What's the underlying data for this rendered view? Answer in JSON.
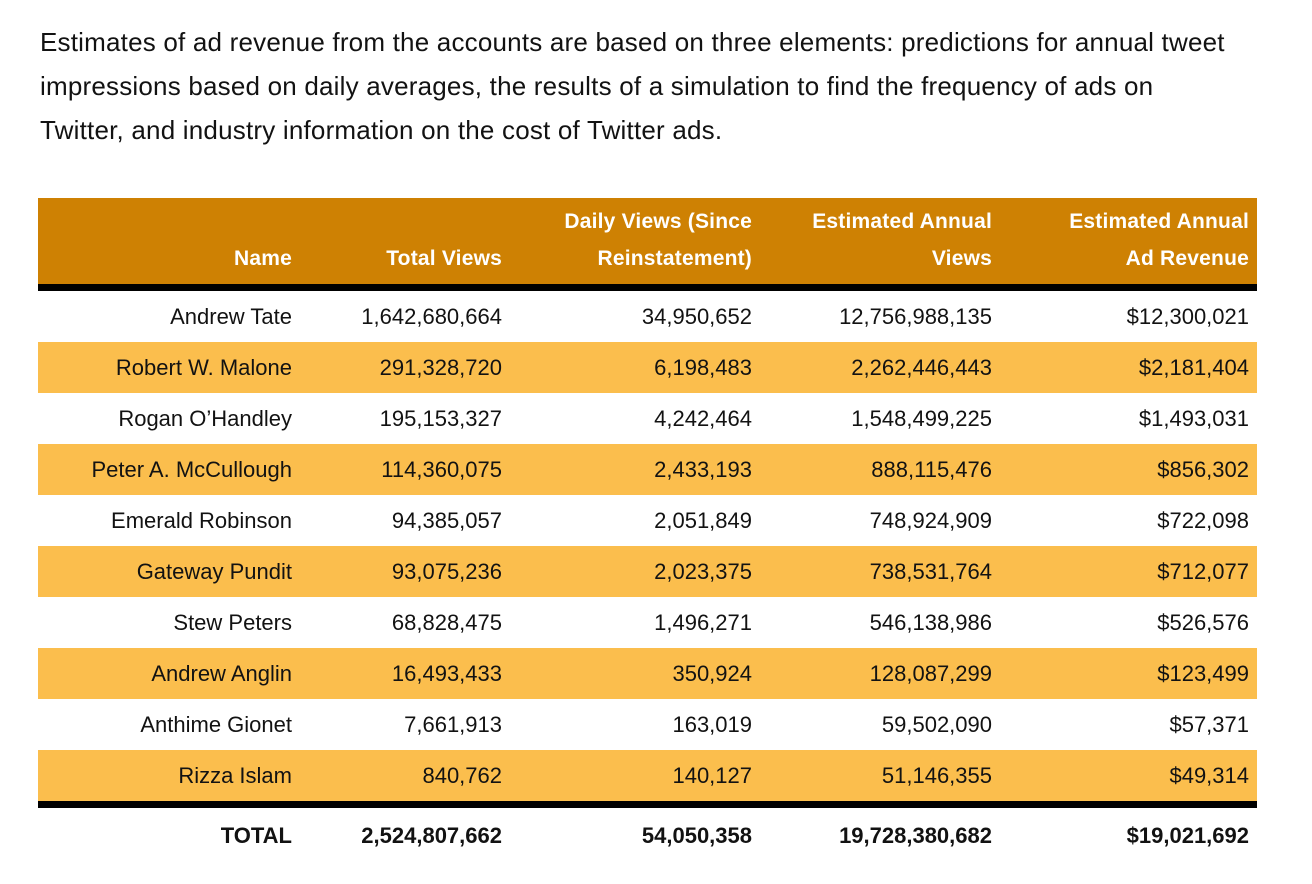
{
  "intro": {
    "text": "Estimates of ad revenue from the accounts are based on three elements: predictions for annual tweet impressions based on daily averages, the results of a simulation to find the frequency of ads on Twitter, and industry information on the cost of Twitter ads."
  },
  "colors": {
    "page_bg": "#FFFFFF",
    "header_bg": "#CE8103",
    "header_text": "#FFFFFF",
    "row_alt_bg": "#FBBE4D",
    "body_text": "#121212",
    "rule": "#000000"
  },
  "table": {
    "columns": [
      {
        "lines": [
          "Name"
        ]
      },
      {
        "lines": [
          "Total Views"
        ]
      },
      {
        "lines": [
          "Daily Views (Since",
          "Reinstatement)"
        ]
      },
      {
        "lines": [
          "Estimated Annual",
          "Views"
        ]
      },
      {
        "lines": [
          "Estimated Annual",
          "Ad Revenue"
        ]
      }
    ],
    "rows": [
      {
        "name": "Andrew Tate",
        "total_views": "1,642,680,664",
        "daily_views": "34,950,652",
        "annual_views": "12,756,988,135",
        "ad_revenue": "$12,300,021"
      },
      {
        "name": "Robert W. Malone",
        "total_views": "291,328,720",
        "daily_views": "6,198,483",
        "annual_views": "2,262,446,443",
        "ad_revenue": "$2,181,404"
      },
      {
        "name": "Rogan O’Handley",
        "total_views": "195,153,327",
        "daily_views": "4,242,464",
        "annual_views": "1,548,499,225",
        "ad_revenue": "$1,493,031"
      },
      {
        "name": "Peter A. McCullough",
        "total_views": "114,360,075",
        "daily_views": "2,433,193",
        "annual_views": "888,115,476",
        "ad_revenue": "$856,302"
      },
      {
        "name": "Emerald Robinson",
        "total_views": "94,385,057",
        "daily_views": "2,051,849",
        "annual_views": "748,924,909",
        "ad_revenue": "$722,098"
      },
      {
        "name": "Gateway Pundit",
        "total_views": "93,075,236",
        "daily_views": "2,023,375",
        "annual_views": "738,531,764",
        "ad_revenue": "$712,077"
      },
      {
        "name": "Stew Peters",
        "total_views": "68,828,475",
        "daily_views": "1,496,271",
        "annual_views": "546,138,986",
        "ad_revenue": "$526,576"
      },
      {
        "name": "Andrew Anglin",
        "total_views": "16,493,433",
        "daily_views": "350,924",
        "annual_views": "128,087,299",
        "ad_revenue": "$123,499"
      },
      {
        "name": "Anthime Gionet",
        "total_views": "7,661,913",
        "daily_views": "163,019",
        "annual_views": "59,502,090",
        "ad_revenue": "$57,371"
      },
      {
        "name": "Rizza Islam",
        "total_views": "840,762",
        "daily_views": "140,127",
        "annual_views": "51,146,355",
        "ad_revenue": "$49,314"
      }
    ],
    "total": {
      "label": "TOTAL",
      "total_views": "2,524,807,662",
      "daily_views": "54,050,358",
      "annual_views": "19,728,380,682",
      "ad_revenue": "$19,021,692"
    }
  }
}
